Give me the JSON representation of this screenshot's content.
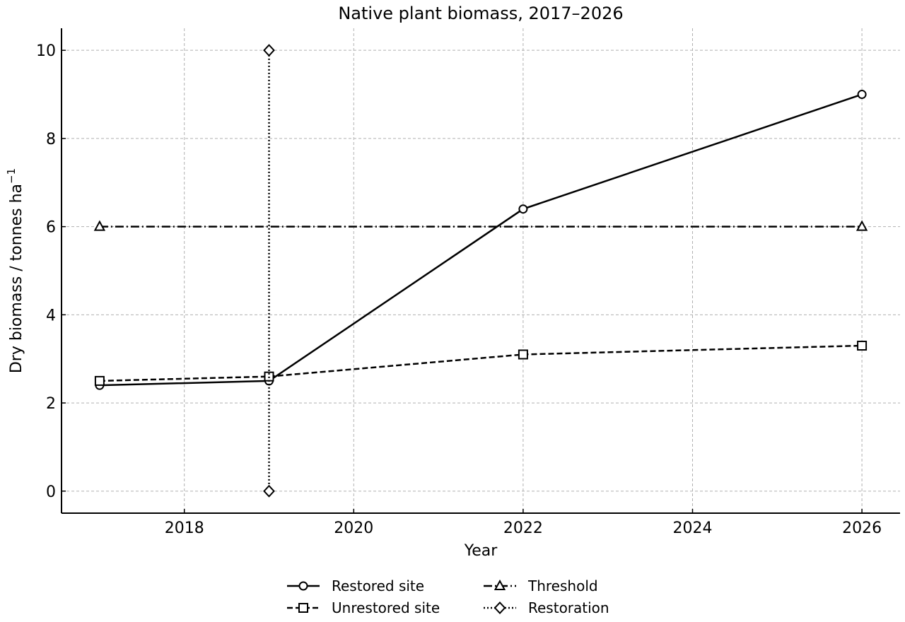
{
  "chart_data": {
    "type": "line",
    "title": "Native plant biomass, 2017–2026",
    "xlabel": "Year",
    "ylabel": "Dry biomass / tonnes ha",
    "ylabel_exponent": "−1",
    "xlim": [
      2016.55,
      2026.45
    ],
    "ylim": [
      -0.5,
      10.5
    ],
    "xticks": [
      2018,
      2020,
      2022,
      2024,
      2026
    ],
    "yticks": [
      0,
      2,
      4,
      6,
      8,
      10
    ],
    "xtick_labels": [
      "2018",
      "2020",
      "2022",
      "2024",
      "2026"
    ],
    "ytick_labels": [
      "0",
      "2",
      "4",
      "6",
      "8",
      "10"
    ],
    "grid": true,
    "legend_position": "bottom-center",
    "series": [
      {
        "name": "Restored site",
        "x": [
          2017,
          2019,
          2022,
          2026
        ],
        "y": [
          2.4,
          2.5,
          6.4,
          9.0
        ],
        "line_style": "solid",
        "marker": "circle",
        "color": "#000000"
      },
      {
        "name": "Unrestored site",
        "x": [
          2017,
          2019,
          2022,
          2026
        ],
        "y": [
          2.5,
          2.6,
          3.1,
          3.3
        ],
        "line_style": "dashed",
        "marker": "square",
        "color": "#000000"
      },
      {
        "name": "Threshold",
        "x": [
          2017,
          2026
        ],
        "y": [
          6.0,
          6.0
        ],
        "line_style": "dashdot",
        "marker": "triangle",
        "color": "#000000"
      },
      {
        "name": "Restoration",
        "x": [
          2019,
          2019
        ],
        "y": [
          0,
          10
        ],
        "line_style": "dotted",
        "marker": "diamond",
        "color": "#000000"
      }
    ]
  }
}
